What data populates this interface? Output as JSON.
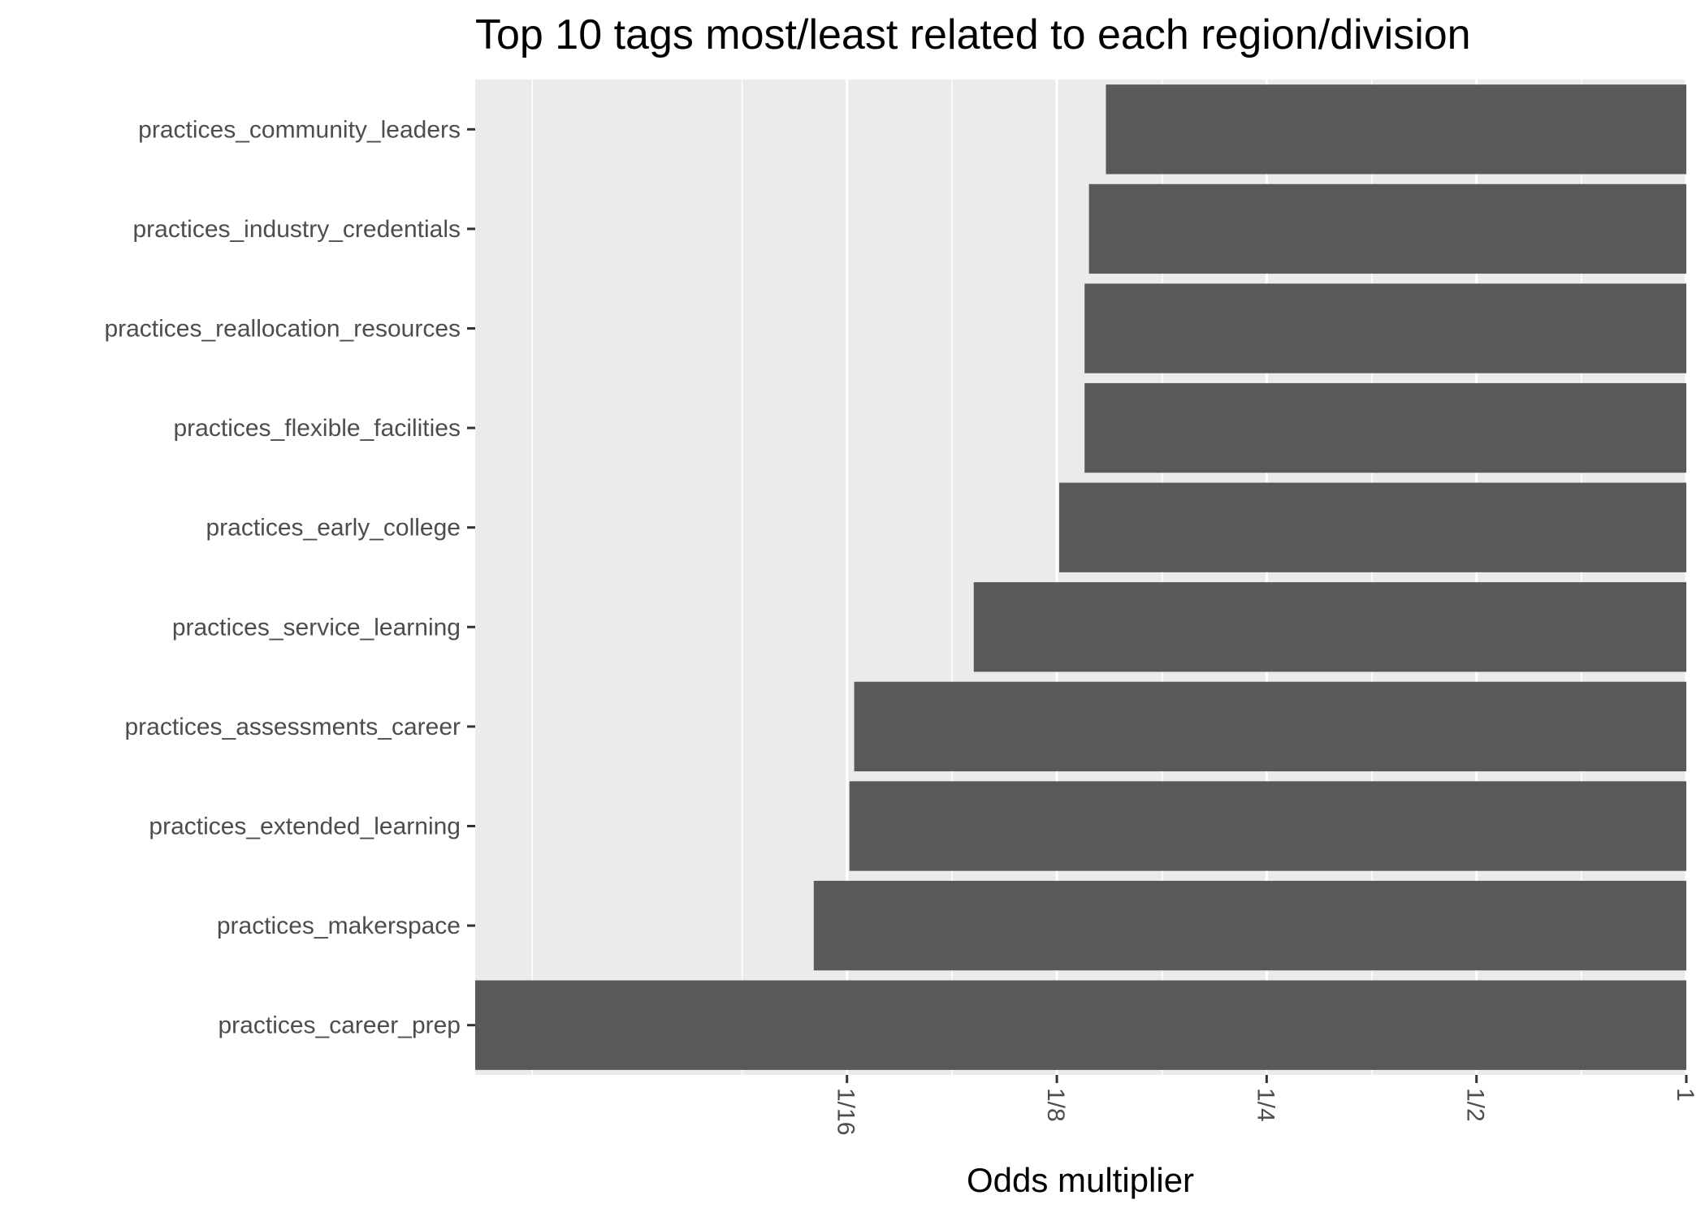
{
  "chart_data": {
    "type": "bar",
    "orientation": "horizontal",
    "title": "Top 10 tags most/least related to each region/division",
    "xlabel": "Odds multiplier",
    "ylabel": "",
    "x_scale": "log2",
    "xlim": [
      0.0183,
      1
    ],
    "x_ticks": [
      {
        "value": 0.0625,
        "label": "1/16"
      },
      {
        "value": 0.125,
        "label": "1/8"
      },
      {
        "value": 0.25,
        "label": "1/4"
      },
      {
        "value": 0.5,
        "label": "1/2"
      },
      {
        "value": 1,
        "label": "1"
      }
    ],
    "x_minor_gridlines": [
      0.0221,
      0.0442,
      0.0884,
      0.177,
      0.354,
      0.707
    ],
    "grid": true,
    "categories": [
      "practices_community_leaders",
      "practices_industry_credentials",
      "practices_reallocation_resources",
      "practices_flexible_facilities",
      "practices_early_college",
      "practices_service_learning",
      "practices_assessments_career",
      "practices_extended_learning",
      "practices_makerspace",
      "practices_career_prep"
    ],
    "values": [
      0.147,
      0.139,
      0.137,
      0.137,
      0.126,
      0.095,
      0.064,
      0.063,
      0.056,
      0.0183
    ],
    "bar_color": "#595959",
    "panel_color": "#ebebeb",
    "grid_color": "#ffffff"
  }
}
